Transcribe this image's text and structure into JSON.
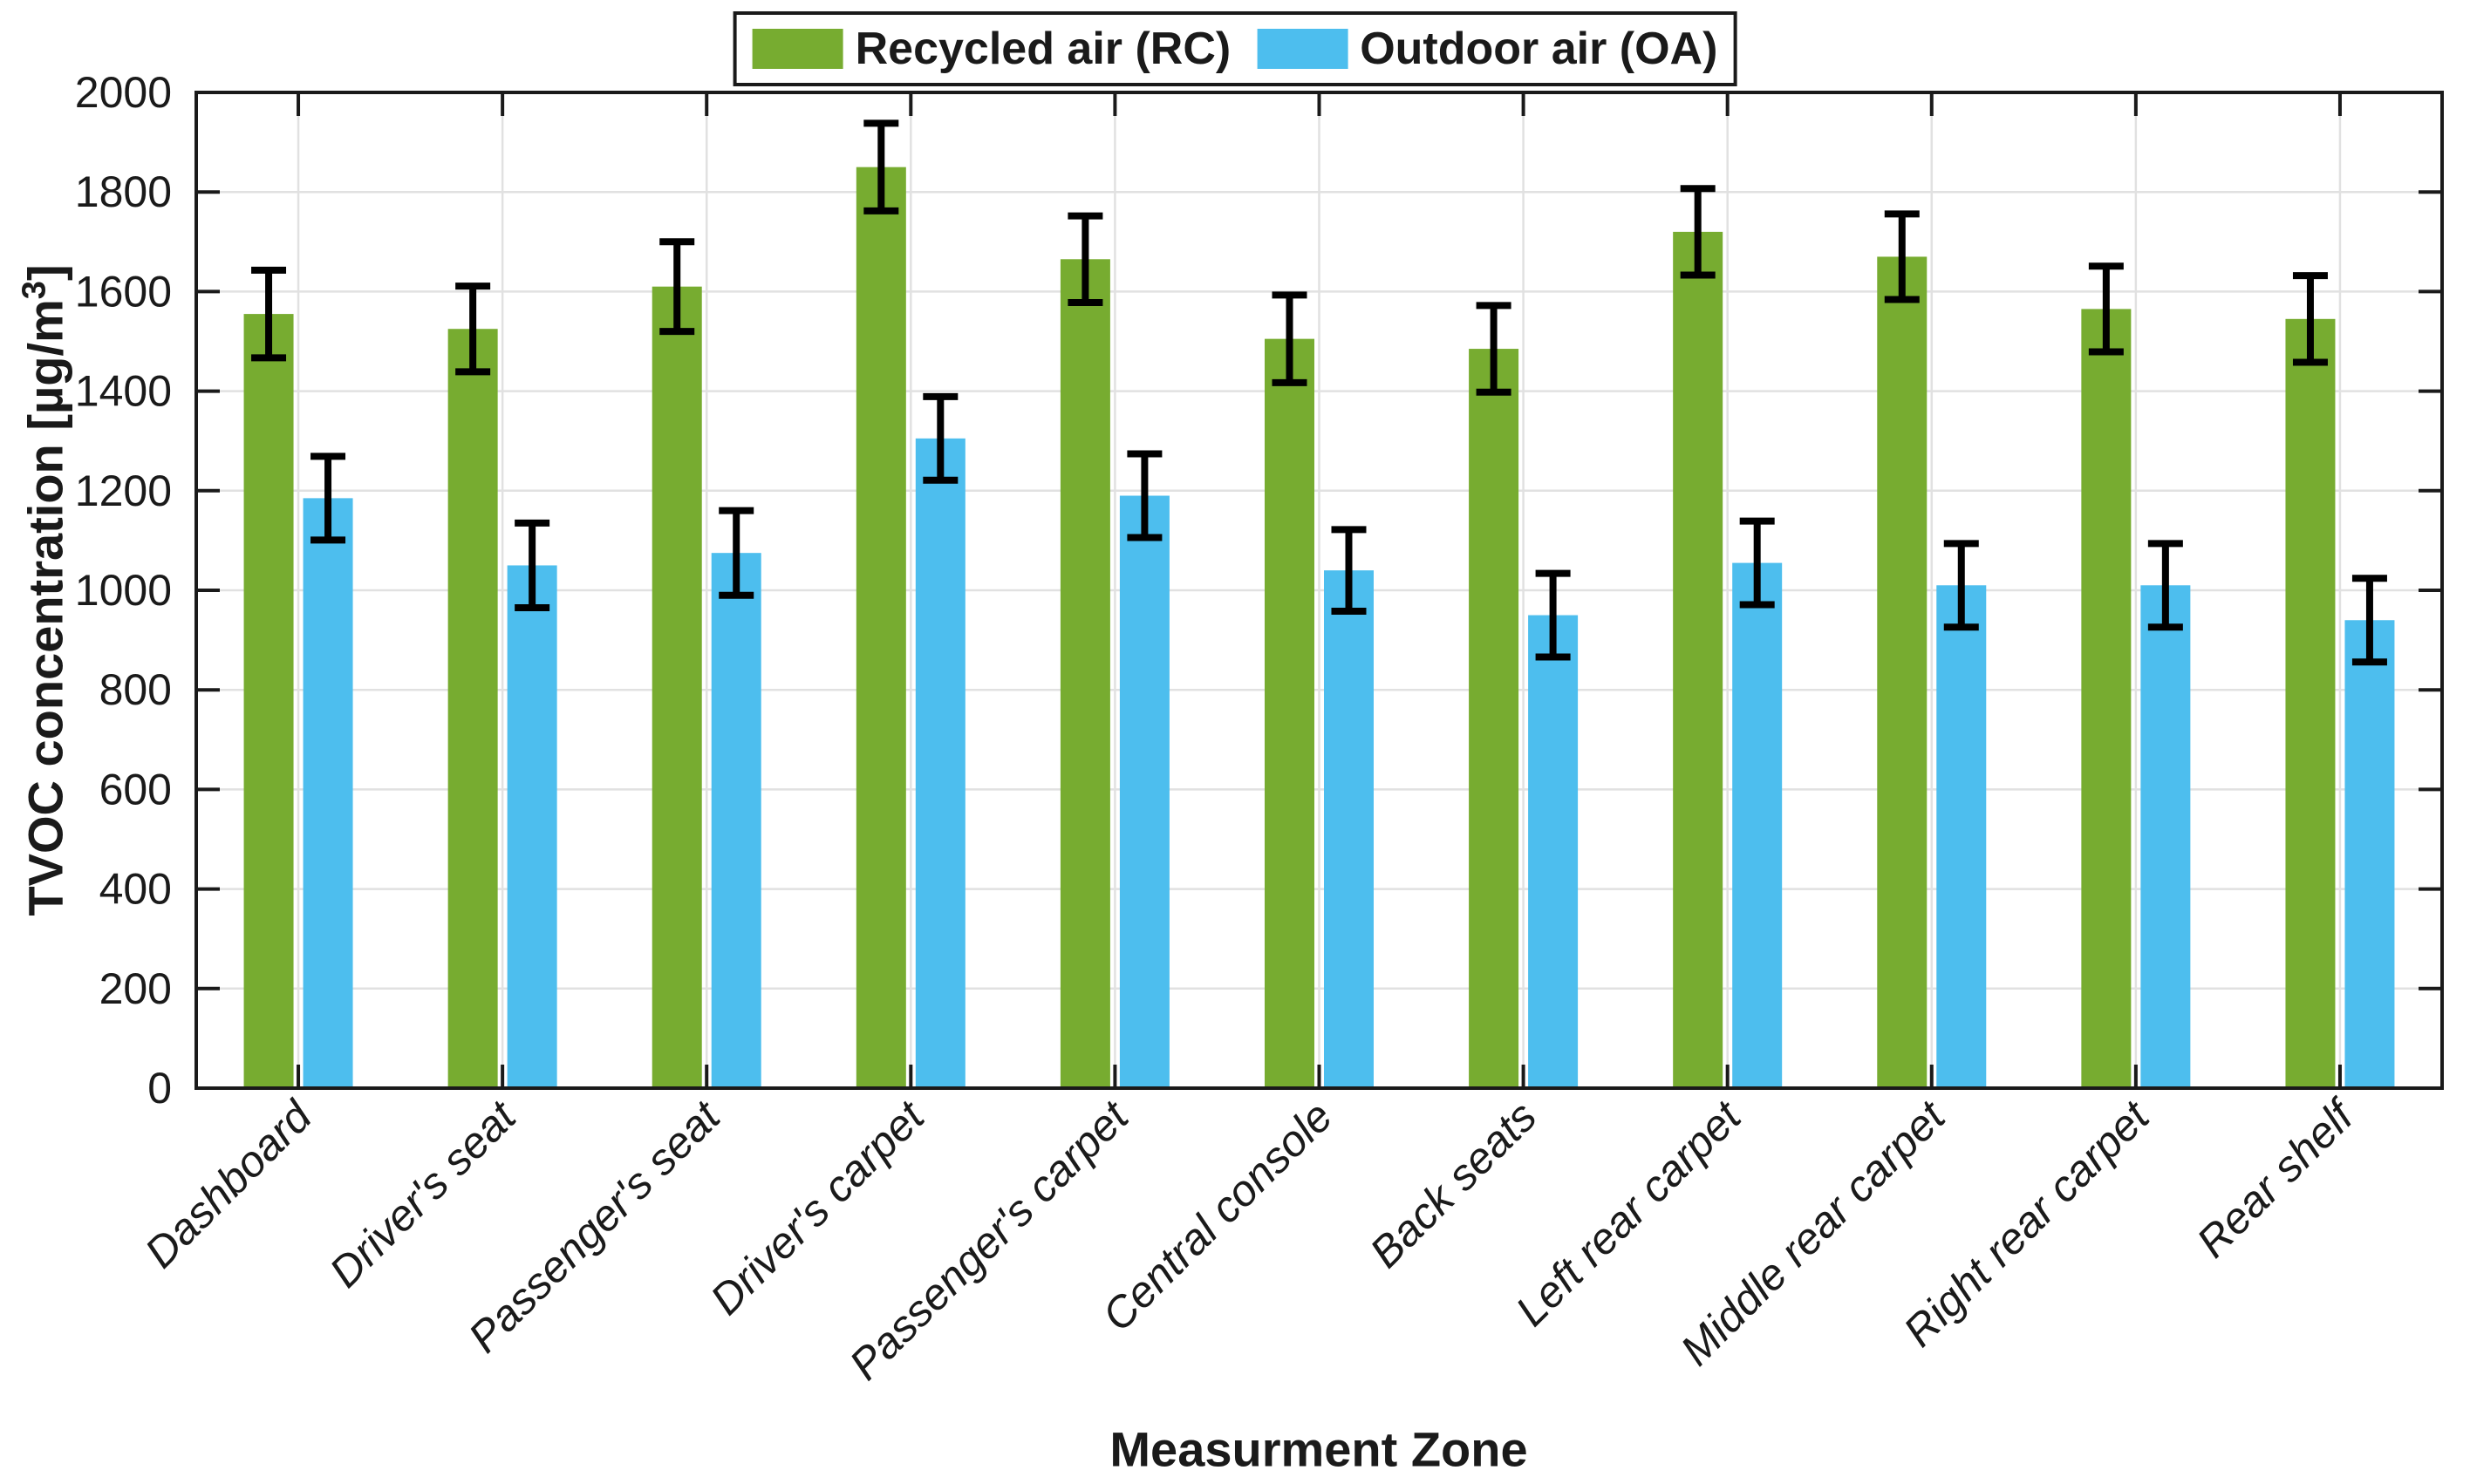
{
  "chart_data": {
    "type": "bar",
    "title": "",
    "xlabel": "Measurment Zone",
    "ylabel_prefix": "TVOC concentration [µg/m",
    "ylabel_sup": "3",
    "ylabel_suffix": "]",
    "categories": [
      "Dashboard",
      "Driver's seat",
      "Passenger's seat",
      "Driver's carpet",
      "Passenger's  carpet",
      "Central console",
      "Back seats",
      "Left rear carpet",
      "Middle rear carpet",
      "Right rear carpet",
      "Rear shelf"
    ],
    "series": [
      {
        "name": "Recycled air (RC)",
        "color": "#77AC30",
        "values": [
          1555,
          1525,
          1610,
          1850,
          1665,
          1505,
          1485,
          1720,
          1670,
          1565,
          1545
        ],
        "errors": [
          88,
          86,
          90,
          88,
          87,
          88,
          87,
          87,
          86,
          86,
          87
        ]
      },
      {
        "name": "Outdoor air (OA)",
        "color": "#4DBEEE",
        "values": [
          1185,
          1050,
          1075,
          1305,
          1190,
          1040,
          950,
          1055,
          1010,
          1010,
          940
        ],
        "errors": [
          84,
          85,
          85,
          84,
          84,
          82,
          84,
          84,
          84,
          84,
          84
        ]
      }
    ],
    "ylim": [
      0,
      2000
    ],
    "ytick_step": 200,
    "grid": true,
    "legend_position": "top-center",
    "error_bar_color": "#000000",
    "grid_color": "#e1e1e1",
    "axis_color": "#1a1a1a"
  },
  "legend": {
    "items": [
      {
        "label": "Recycled air (RC)",
        "color": "#77AC30"
      },
      {
        "label": "Outdoor air (OA)",
        "color": "#4DBEEE"
      }
    ]
  }
}
